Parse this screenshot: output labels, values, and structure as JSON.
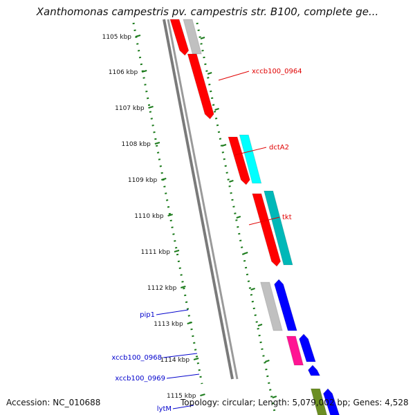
{
  "title": "Xanthomonas campestris pv. campestris str. B100, complete ge...",
  "footer": {
    "accession": "Accession: NC_010688",
    "summary": "Topology: circular; Length: 5,079,002 bp; Genes: 4,528"
  },
  "ticks": [
    "1105 kbp",
    "1106 kbp",
    "1107 kbp",
    "1108 kbp",
    "1109 kbp",
    "1110 kbp",
    "1111 kbp",
    "1112 kbp",
    "1113 kbp",
    "1114 kbp",
    "1115 kbp"
  ],
  "gene_labels": [
    {
      "name": "xccb100_0964",
      "color": "#e00000"
    },
    {
      "name": "dctA2",
      "color": "#e00000"
    },
    {
      "name": "tkt",
      "color": "#e00000"
    },
    {
      "name": "pip1",
      "color": "#0000cc"
    },
    {
      "name": "xccb100_0968",
      "color": "#0000cc"
    },
    {
      "name": "xccb100_0969",
      "color": "#0000cc"
    },
    {
      "name": "lytM",
      "color": "#0000cc"
    }
  ],
  "colors": {
    "backbone": "#7a7a7a",
    "dots": "#1a7a1a",
    "red": "#ff0000",
    "gray": "#c0c0c0",
    "cyan": "#00ffff",
    "teal": "#00b8b8",
    "blue": "#0000ff",
    "magenta": "#ff1493",
    "olive": "#6b8e23"
  }
}
